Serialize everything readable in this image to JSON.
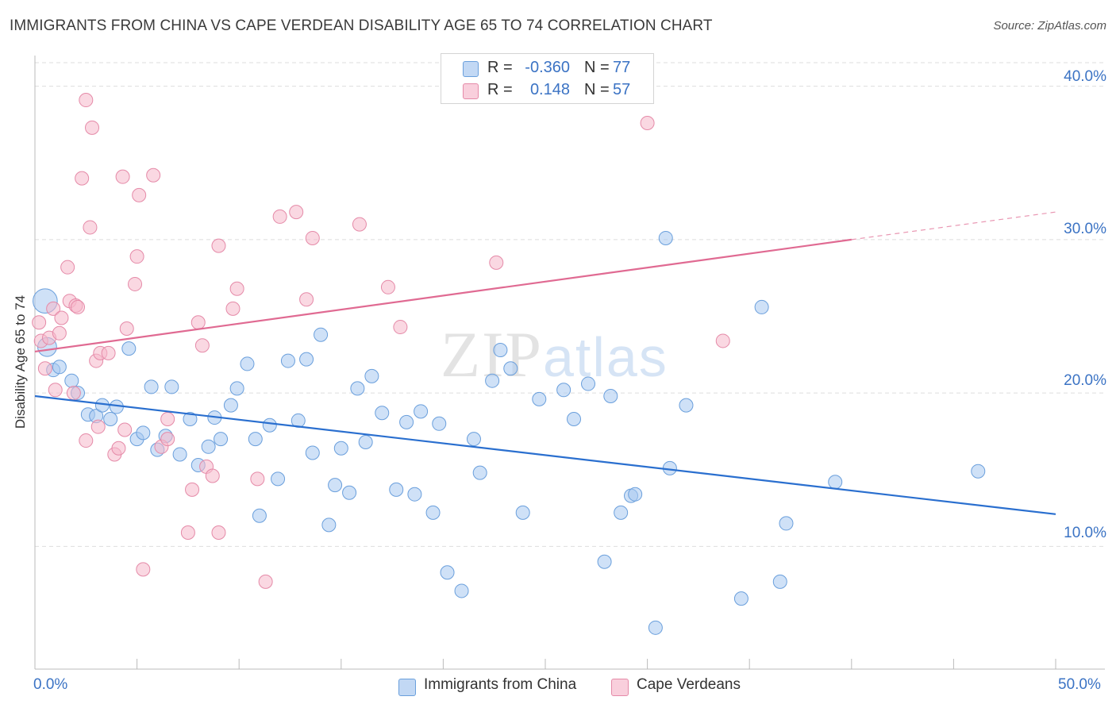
{
  "header": {
    "title": "IMMIGRANTS FROM CHINA VS CAPE VERDEAN DISABILITY AGE 65 TO 74 CORRELATION CHART",
    "source": "Source: ZipAtlas.com"
  },
  "watermark": {
    "zip": "ZIP",
    "atlas": "atlas"
  },
  "legend": {
    "rows": [
      {
        "r_label": "R =",
        "r_value": "-0.360",
        "n_label": "N =",
        "n_value": "77",
        "color": "#a8c8f0"
      },
      {
        "r_label": "R =",
        "r_value": "0.148",
        "n_label": "N =",
        "n_value": "57",
        "color": "#f5b8cb"
      }
    ]
  },
  "bottom_legend": {
    "china": "Immigrants from China",
    "cape": "Cape Verdeans"
  },
  "colors": {
    "china_fill": "#a8c8f0",
    "china_stroke": "#6a9fdc",
    "china_line": "#2a6fcf",
    "cape_fill": "#f5b8cb",
    "cape_stroke": "#e58aa8",
    "cape_line": "#e06a92",
    "axis_text": "#3b73c4",
    "grid": "#dddddd"
  },
  "chart_data": {
    "type": "scatter",
    "title": "IMMIGRANTS FROM CHINA VS CAPE VERDEAN DISABILITY AGE 65 TO 74 CORRELATION CHART",
    "xlabel": "",
    "ylabel": "Disability Age 65 to 74",
    "xlim": [
      0,
      50
    ],
    "ylim": [
      2,
      42
    ],
    "x_tick_labels": [
      "0.0%",
      "50.0%"
    ],
    "y_ticks": [
      10,
      20,
      30,
      40
    ],
    "y_tick_labels": [
      "10.0%",
      "20.0%",
      "30.0%",
      "40.0%"
    ],
    "grid": true,
    "series": [
      {
        "name": "Immigrants from China",
        "r": -0.36,
        "n": 77,
        "trend": {
          "x": [
            0,
            50
          ],
          "y": [
            19.8,
            12.1
          ]
        },
        "points": [
          [
            0.5,
            26.0,
            1.8
          ],
          [
            0.6,
            23.0,
            1.4
          ],
          [
            0.9,
            21.5,
            1
          ],
          [
            1.2,
            21.7,
            1
          ],
          [
            1.8,
            20.8,
            1
          ],
          [
            2.1,
            20.0,
            1
          ],
          [
            2.6,
            18.6,
            1
          ],
          [
            3.0,
            18.5,
            1
          ],
          [
            3.3,
            19.2,
            1
          ],
          [
            3.7,
            18.3,
            1
          ],
          [
            4.0,
            19.1,
            1
          ],
          [
            4.6,
            22.9,
            1
          ],
          [
            5.0,
            17.0,
            1
          ],
          [
            5.3,
            17.4,
            1
          ],
          [
            5.7,
            20.4,
            1
          ],
          [
            6.0,
            16.3,
            1
          ],
          [
            6.4,
            17.2,
            1
          ],
          [
            6.7,
            20.4,
            1
          ],
          [
            7.1,
            16.0,
            1
          ],
          [
            7.6,
            18.3,
            1
          ],
          [
            8.0,
            15.3,
            1
          ],
          [
            8.5,
            16.5,
            1
          ],
          [
            8.8,
            18.4,
            1
          ],
          [
            9.1,
            17.0,
            1
          ],
          [
            9.6,
            19.2,
            1
          ],
          [
            9.9,
            20.3,
            1
          ],
          [
            10.4,
            21.9,
            1
          ],
          [
            10.8,
            17.0,
            1
          ],
          [
            11.0,
            12.0,
            1
          ],
          [
            11.5,
            17.9,
            1
          ],
          [
            11.9,
            14.4,
            1
          ],
          [
            12.4,
            22.1,
            1
          ],
          [
            12.9,
            18.2,
            1
          ],
          [
            13.3,
            22.2,
            1
          ],
          [
            13.6,
            16.1,
            1
          ],
          [
            14.0,
            23.8,
            1
          ],
          [
            14.4,
            11.4,
            1
          ],
          [
            14.7,
            14.0,
            1
          ],
          [
            15.0,
            16.4,
            1
          ],
          [
            15.4,
            13.5,
            1
          ],
          [
            15.8,
            20.3,
            1
          ],
          [
            16.2,
            16.8,
            1
          ],
          [
            16.5,
            21.1,
            1
          ],
          [
            17.0,
            18.7,
            1
          ],
          [
            17.7,
            13.7,
            1
          ],
          [
            18.2,
            18.1,
            1
          ],
          [
            18.6,
            13.4,
            1
          ],
          [
            18.9,
            18.8,
            1
          ],
          [
            19.5,
            12.2,
            1
          ],
          [
            19.8,
            18.0,
            1
          ],
          [
            20.2,
            8.3,
            1
          ],
          [
            20.9,
            7.1,
            1
          ],
          [
            21.5,
            17.0,
            1
          ],
          [
            21.8,
            14.8,
            1
          ],
          [
            22.4,
            20.8,
            1
          ],
          [
            22.8,
            22.8,
            1
          ],
          [
            23.3,
            21.6,
            1
          ],
          [
            23.9,
            12.2,
            1
          ],
          [
            24.7,
            19.6,
            1
          ],
          [
            25.9,
            20.2,
            1
          ],
          [
            26.4,
            18.3,
            1
          ],
          [
            27.1,
            20.6,
            1
          ],
          [
            27.9,
            9.0,
            1
          ],
          [
            28.2,
            19.8,
            1
          ],
          [
            28.7,
            12.2,
            1
          ],
          [
            29.2,
            13.3,
            1
          ],
          [
            29.4,
            13.4,
            1
          ],
          [
            30.4,
            4.7,
            1
          ],
          [
            30.9,
            30.1,
            1
          ],
          [
            31.1,
            15.1,
            1
          ],
          [
            31.9,
            19.2,
            1
          ],
          [
            34.6,
            6.6,
            1
          ],
          [
            35.6,
            25.6,
            1
          ],
          [
            36.5,
            7.7,
            1
          ],
          [
            36.8,
            11.5,
            1
          ],
          [
            39.2,
            14.2,
            1
          ],
          [
            46.2,
            14.9,
            1
          ]
        ]
      },
      {
        "name": "Cape Verdeans",
        "r": 0.148,
        "n": 57,
        "trend": {
          "x": [
            0,
            40
          ],
          "y": [
            22.7,
            30.0
          ]
        },
        "trend_dashed": {
          "x": [
            40,
            50
          ],
          "y": [
            30.0,
            31.8
          ]
        },
        "points": [
          [
            0.2,
            24.6,
            1
          ],
          [
            0.3,
            23.4,
            1
          ],
          [
            0.5,
            21.6,
            1
          ],
          [
            0.7,
            23.6,
            1
          ],
          [
            0.9,
            25.5,
            1
          ],
          [
            1.0,
            20.2,
            1
          ],
          [
            1.2,
            23.9,
            1
          ],
          [
            1.3,
            24.9,
            1
          ],
          [
            1.6,
            28.2,
            1
          ],
          [
            1.7,
            26.0,
            1
          ],
          [
            1.9,
            20.0,
            1
          ],
          [
            2.0,
            25.7,
            1
          ],
          [
            2.1,
            25.6,
            1
          ],
          [
            2.3,
            34.0,
            1
          ],
          [
            2.5,
            39.1,
            1
          ],
          [
            2.5,
            16.9,
            1
          ],
          [
            2.7,
            30.8,
            1
          ],
          [
            2.8,
            37.3,
            1
          ],
          [
            3.0,
            22.1,
            1
          ],
          [
            3.1,
            17.8,
            1
          ],
          [
            3.2,
            22.6,
            1
          ],
          [
            3.6,
            22.6,
            1
          ],
          [
            3.9,
            16.0,
            1
          ],
          [
            4.1,
            16.4,
            1
          ],
          [
            4.3,
            34.1,
            1
          ],
          [
            4.4,
            17.6,
            1
          ],
          [
            4.5,
            24.2,
            1
          ],
          [
            4.9,
            27.1,
            1
          ],
          [
            5.0,
            28.9,
            1
          ],
          [
            5.1,
            32.9,
            1
          ],
          [
            5.3,
            8.5,
            1
          ],
          [
            5.8,
            34.2,
            1
          ],
          [
            6.2,
            16.5,
            1
          ],
          [
            6.5,
            17.0,
            1
          ],
          [
            6.5,
            18.3,
            1
          ],
          [
            7.5,
            10.9,
            1
          ],
          [
            7.7,
            13.7,
            1
          ],
          [
            8.0,
            24.6,
            1
          ],
          [
            8.2,
            23.1,
            1
          ],
          [
            8.4,
            15.2,
            1
          ],
          [
            8.7,
            14.6,
            1
          ],
          [
            9.0,
            29.6,
            1
          ],
          [
            9.0,
            10.9,
            1
          ],
          [
            9.7,
            25.5,
            1
          ],
          [
            9.9,
            26.8,
            1
          ],
          [
            10.9,
            14.4,
            1
          ],
          [
            11.3,
            7.7,
            1
          ],
          [
            12.0,
            31.5,
            1
          ],
          [
            12.8,
            31.8,
            1
          ],
          [
            13.3,
            26.1,
            1
          ],
          [
            13.6,
            30.1,
            1
          ],
          [
            15.9,
            31.0,
            1
          ],
          [
            17.3,
            26.9,
            1
          ],
          [
            17.9,
            24.3,
            1
          ],
          [
            22.6,
            28.5,
            1
          ],
          [
            30.0,
            37.6,
            1
          ],
          [
            33.7,
            23.4,
            1
          ]
        ]
      }
    ]
  }
}
